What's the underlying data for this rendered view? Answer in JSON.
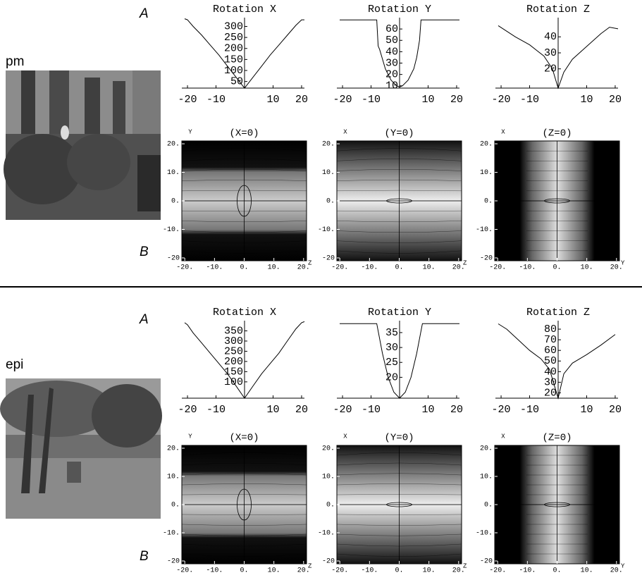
{
  "figure": {
    "rows": [
      {
        "name": "pm",
        "a": "A",
        "b": "B"
      },
      {
        "name": "epi",
        "a": "A",
        "b": "B"
      }
    ]
  },
  "chart_data": [
    {
      "type": "line",
      "title": "Rotation X",
      "color": "#000000",
      "x": [
        -21,
        -20,
        -18,
        -15,
        -12,
        -9,
        -6,
        -3,
        0,
        3,
        6,
        9,
        12,
        15,
        18,
        20,
        21
      ],
      "values": [
        335,
        330,
        300,
        260,
        215,
        170,
        120,
        70,
        20,
        70,
        120,
        170,
        215,
        260,
        305,
        330,
        330
      ],
      "xlim": [
        -21,
        21
      ],
      "ylim": [
        20,
        340
      ],
      "xticks": [
        -20,
        -10,
        10,
        20
      ],
      "yticks": [
        50,
        100,
        150,
        200,
        250,
        300
      ]
    },
    {
      "type": "line",
      "title": "Rotation Y",
      "color": "#000000",
      "x": [
        -21,
        -8,
        -7.5,
        -7,
        -5,
        -3,
        -1,
        0,
        1,
        3,
        5,
        6,
        7,
        7.5,
        21
      ],
      "values": [
        68,
        68,
        45,
        42,
        25,
        15,
        10,
        9,
        10,
        15,
        25,
        35,
        50,
        68,
        68
      ],
      "xlim": [
        -21,
        21
      ],
      "ylim": [
        8,
        70
      ],
      "xticks": [
        -20,
        -10,
        10,
        20
      ],
      "yticks": [
        10,
        20,
        30,
        40,
        50,
        60
      ]
    },
    {
      "type": "line",
      "title": "Rotation Z",
      "color": "#000000",
      "x": [
        -21,
        -15,
        -10,
        -5,
        -2,
        0,
        2,
        5,
        10,
        15,
        18,
        21
      ],
      "values": [
        47,
        40,
        35,
        28,
        20,
        8,
        18,
        26,
        34,
        42,
        46,
        45
      ],
      "xlim": [
        -21,
        21
      ],
      "ylim": [
        8,
        52
      ],
      "xticks": [
        -20,
        -10,
        10,
        20
      ],
      "yticks": [
        20,
        30,
        40
      ]
    },
    {
      "type": "contour",
      "title": "(X=0)",
      "x_label": "Z",
      "y_label": "Y",
      "xlim": [
        -21,
        21
      ],
      "ylim": [
        -21,
        21
      ],
      "xticks": [
        {
          "value": -20,
          "label": "-20."
        },
        {
          "value": -10,
          "label": "-10."
        },
        {
          "value": 0,
          "label": "0."
        },
        {
          "value": 10,
          "label": "10."
        },
        {
          "value": 20,
          "label": "20."
        }
      ],
      "yticks": [
        {
          "value": -20,
          "label": "-20"
        },
        {
          "value": -10,
          "label": "-10."
        },
        {
          "value": 0,
          "label": "0."
        },
        {
          "value": 10,
          "label": "10."
        },
        {
          "value": 20,
          "label": "20."
        }
      ]
    },
    {
      "type": "contour",
      "title": "(Y=0)",
      "x_label": "Z",
      "y_label": "X",
      "xlim": [
        -21,
        21
      ],
      "ylim": [
        -21,
        21
      ],
      "xticks": [
        {
          "value": -20,
          "label": "-20."
        },
        {
          "value": -10,
          "label": "-10."
        },
        {
          "value": 0,
          "label": "0."
        },
        {
          "value": 10,
          "label": "10."
        },
        {
          "value": 20,
          "label": "20."
        }
      ],
      "yticks": [
        {
          "value": -20,
          "label": "-20"
        },
        {
          "value": -10,
          "label": "-10."
        },
        {
          "value": 0,
          "label": "0."
        },
        {
          "value": 10,
          "label": "10."
        },
        {
          "value": 20,
          "label": "20."
        }
      ]
    },
    {
      "type": "contour",
      "title": "(Z=0)",
      "x_label": "Y",
      "y_label": "X",
      "xlim": [
        -21,
        21
      ],
      "ylim": [
        -21,
        21
      ],
      "xticks": [
        {
          "value": -20,
          "label": "-20."
        },
        {
          "value": -10,
          "label": "-10."
        },
        {
          "value": 0,
          "label": "0."
        },
        {
          "value": 10,
          "label": "10."
        },
        {
          "value": 20,
          "label": "20."
        }
      ],
      "yticks": [
        {
          "value": -20,
          "label": "-20"
        },
        {
          "value": -10,
          "label": "-10."
        },
        {
          "value": 0,
          "label": "0."
        },
        {
          "value": 10,
          "label": "10."
        },
        {
          "value": 20,
          "label": "20."
        }
      ]
    },
    {
      "type": "line",
      "title": "Rotation X",
      "color": "#000000",
      "x": [
        -21,
        -20,
        -18,
        -15,
        -12,
        -9,
        -6,
        -3,
        0,
        3,
        6,
        9,
        12,
        15,
        18,
        20,
        21
      ],
      "values": [
        390,
        380,
        340,
        290,
        240,
        190,
        140,
        80,
        20,
        80,
        140,
        190,
        240,
        300,
        360,
        390,
        395
      ],
      "xlim": [
        -21,
        21
      ],
      "ylim": [
        20,
        400
      ],
      "xticks": [
        -20,
        -10,
        10,
        20
      ],
      "yticks": [
        100,
        150,
        200,
        250,
        300,
        350
      ]
    },
    {
      "type": "line",
      "title": "Rotation Y",
      "color": "#000000",
      "x": [
        -21,
        -8,
        -6,
        -4,
        -2,
        0,
        2,
        4,
        6,
        8,
        21
      ],
      "values": [
        38,
        38,
        28,
        20,
        15,
        13,
        15,
        20,
        28,
        38,
        38
      ],
      "xlim": [
        -21,
        21
      ],
      "ylim": [
        13,
        39
      ],
      "xticks": [
        -20,
        -10,
        10,
        20
      ],
      "yticks": [
        20,
        25,
        30,
        35
      ]
    },
    {
      "type": "line",
      "title": "Rotation Z",
      "color": "#000000",
      "x": [
        -21,
        -18,
        -14,
        -10,
        -6,
        -3,
        0,
        2,
        5,
        10,
        15,
        20
      ],
      "values": [
        85,
        80,
        70,
        60,
        52,
        42,
        15,
        38,
        48,
        56,
        65,
        75
      ],
      "xlim": [
        -21,
        21
      ],
      "ylim": [
        15,
        88
      ],
      "xticks": [
        -20,
        -10,
        10,
        20
      ],
      "yticks": [
        20,
        30,
        40,
        50,
        60,
        70,
        80
      ]
    },
    {
      "type": "contour",
      "title": "(X=0)",
      "x_label": "Z",
      "y_label": "Y",
      "xlim": [
        -21,
        21
      ],
      "ylim": [
        -21,
        21
      ],
      "xticks": [
        {
          "value": -20,
          "label": "-20."
        },
        {
          "value": -10,
          "label": "-10."
        },
        {
          "value": 0,
          "label": "0."
        },
        {
          "value": 10,
          "label": "10."
        },
        {
          "value": 20,
          "label": "20."
        }
      ],
      "yticks": [
        {
          "value": -20,
          "label": "-20"
        },
        {
          "value": -10,
          "label": "-10."
        },
        {
          "value": 0,
          "label": "0."
        },
        {
          "value": 10,
          "label": "10."
        },
        {
          "value": 20,
          "label": "20."
        }
      ]
    },
    {
      "type": "contour",
      "title": "(Y=0)",
      "x_label": "Z",
      "y_label": "X",
      "xlim": [
        -21,
        21
      ],
      "ylim": [
        -21,
        21
      ],
      "xticks": [
        {
          "value": -20,
          "label": "-20."
        },
        {
          "value": -10,
          "label": "-10."
        },
        {
          "value": 0,
          "label": "0."
        },
        {
          "value": 10,
          "label": "10."
        },
        {
          "value": 20,
          "label": "20."
        }
      ],
      "yticks": [
        {
          "value": -20,
          "label": "-20"
        },
        {
          "value": -10,
          "label": "-10."
        },
        {
          "value": 0,
          "label": "0."
        },
        {
          "value": 10,
          "label": "10."
        },
        {
          "value": 20,
          "label": "20."
        }
      ]
    },
    {
      "type": "contour",
      "title": "(Z=0)",
      "x_label": "Y",
      "y_label": "X",
      "xlim": [
        -21,
        21
      ],
      "ylim": [
        -21,
        21
      ],
      "xticks": [
        {
          "value": -20,
          "label": "-20."
        },
        {
          "value": -10,
          "label": "-10."
        },
        {
          "value": 0,
          "label": "0."
        },
        {
          "value": 10,
          "label": "10."
        },
        {
          "value": 20,
          "label": "20."
        }
      ],
      "yticks": [
        {
          "value": -20,
          "label": "-20"
        },
        {
          "value": -10,
          "label": "-10."
        },
        {
          "value": 0,
          "label": "0."
        },
        {
          "value": 10,
          "label": "10."
        },
        {
          "value": 20,
          "label": "20."
        }
      ]
    }
  ]
}
